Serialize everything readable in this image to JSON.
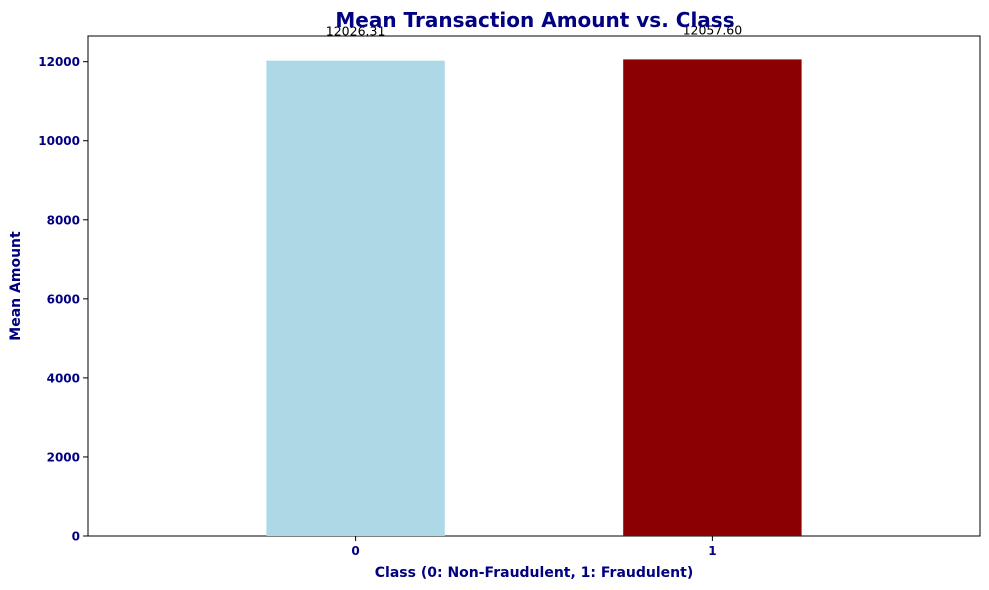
{
  "chart_data": {
    "type": "bar",
    "title": "Mean Transaction Amount vs. Class",
    "xlabel": "Class (0: Non-Fraudulent, 1: Fraudulent)",
    "ylabel": "Mean Amount",
    "categories": [
      "0",
      "1"
    ],
    "values": [
      12026.31,
      12057.6
    ],
    "value_labels": [
      "12026.31",
      "12057.60"
    ],
    "ylim": [
      0,
      12650
    ],
    "yticks": [
      0,
      2000,
      4000,
      6000,
      8000,
      10000,
      12000
    ],
    "ytick_labels": [
      "0",
      "2000",
      "4000",
      "6000",
      "8000",
      "10000",
      "12000"
    ],
    "bar_colors": [
      "#add8e6",
      "#8b0000"
    ],
    "grid": false,
    "legend": "none"
  },
  "colors": {
    "title": "#000080",
    "axis_label": "#000080",
    "tick_label": "#000080",
    "data_label": "#000000",
    "axes": "#000000"
  }
}
